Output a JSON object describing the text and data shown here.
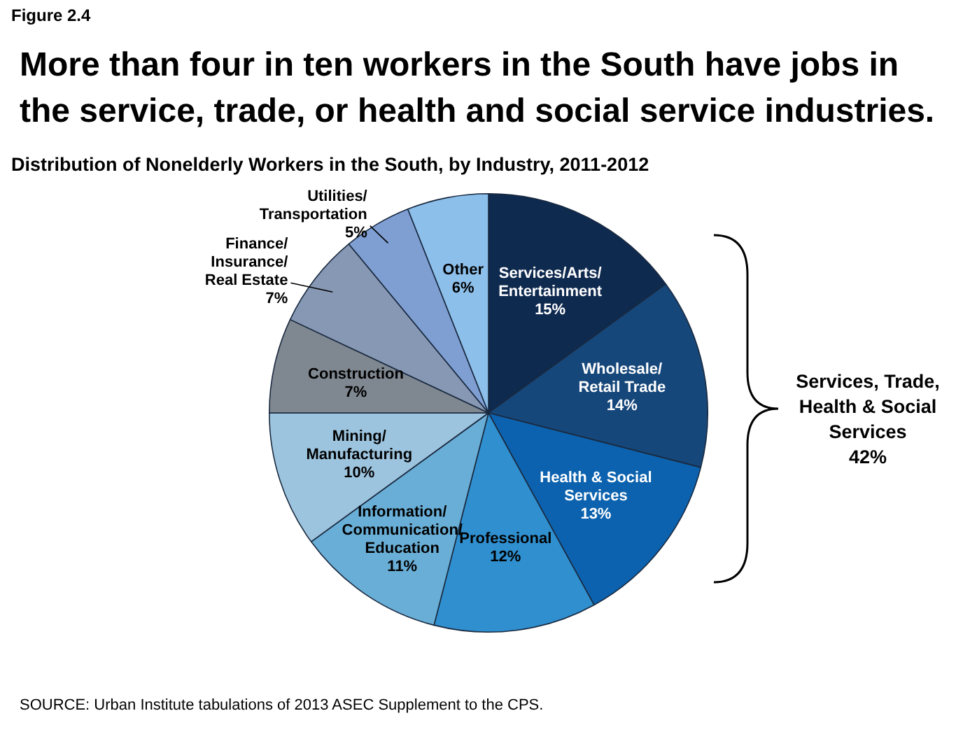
{
  "chart_data": {
    "type": "pie",
    "title": "More than four in ten workers in the South have jobs in the service, trade, or health and social service industries.",
    "subtitle": "Distribution of Nonelderly Workers in the South, by Industry, 2011-2012",
    "categories": [
      "Services/Arts/\nEntertainment",
      "Wholesale/\nRetail Trade",
      "Health & Social\nServices",
      "Professional",
      "Information/\nCommunication/\nEducation",
      "Mining/\nManufacturing",
      "Construction",
      "Finance/\nInsurance/\nReal Estate",
      "Utilities/\nTransportation",
      "Other"
    ],
    "values": [
      15,
      14,
      13,
      12,
      11,
      10,
      7,
      7,
      5,
      6
    ],
    "colors": [
      "#0f2a4f",
      "#16477a",
      "#0c62ae",
      "#2f8fcf",
      "#69aed6",
      "#9dc4de",
      "#7f8790",
      "#8698b3",
      "#7f9fd3",
      "#8cbfea"
    ],
    "value_labels": [
      "15%",
      "14%",
      "13%",
      "12%",
      "11%",
      "10%",
      "7%",
      "7%",
      "5%",
      "6%"
    ],
    "legend": false,
    "annotations": [
      "Figure 2.4",
      "Services, Trade, Health & Social Services\n42%",
      "SOURCE: Urban Institute tabulations of 2013 ASEC Supplement to the CPS."
    ]
  }
}
